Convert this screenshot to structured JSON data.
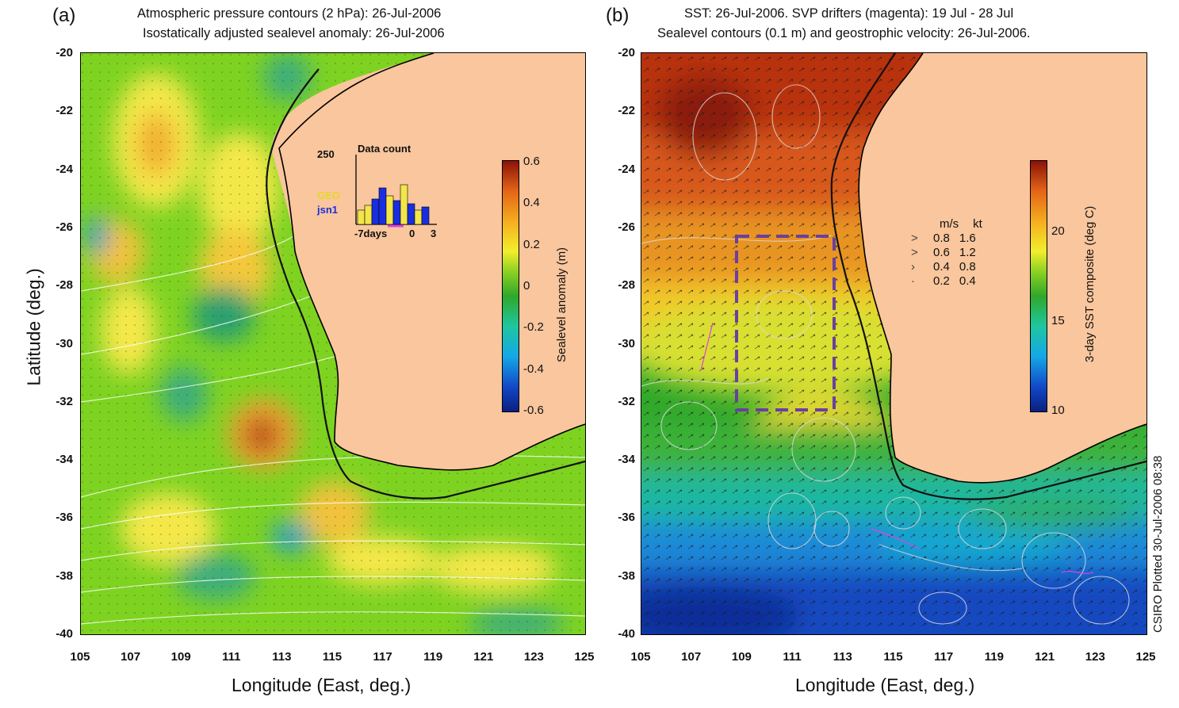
{
  "panel_a": {
    "letter": "(a)",
    "title_line1": "Atmospheric pressure contours (2 hPa): 26-Jul-2006",
    "title_line2": "Isostatically adjusted sealevel anomaly: 26-Jul-2006",
    "x_axis_label": "Longitude (East, deg.)",
    "y_axis_label": "Latitude (deg.)",
    "x_ticks": [
      "105",
      "107",
      "109",
      "111",
      "113",
      "115",
      "117",
      "119",
      "121",
      "123",
      "125"
    ],
    "y_ticks": [
      "-20",
      "-22",
      "-24",
      "-26",
      "-28",
      "-30",
      "-32",
      "-34",
      "-36",
      "-38",
      "-40"
    ],
    "colorbar": {
      "label": "Sealevel anomaly (m)",
      "ticks": [
        "0.6",
        "0.4",
        "0.2",
        "0",
        "-0.2",
        "-0.4",
        "-0.6"
      ]
    },
    "inset": {
      "title": "Data count",
      "max_label": "250",
      "legend_geo": "GEO",
      "legend_jsn1": "jsn1",
      "x_ticks": [
        "-7days",
        "0",
        "3"
      ],
      "geo_color": "#f2e64a",
      "jsn1_color": "#1a2ee0"
    }
  },
  "panel_b": {
    "letter": "(b)",
    "title_line1": "SST: 26-Jul-2006. SVP drifters (magenta): 19 Jul - 28 Jul",
    "title_line2": "Sealevel contours (0.1 m) and geostrophic velocity: 26-Jul-2006.",
    "x_axis_label": "Longitude (East, deg.)",
    "x_ticks": [
      "105",
      "107",
      "109",
      "111",
      "113",
      "115",
      "117",
      "119",
      "121",
      "123",
      "125"
    ],
    "y_ticks": [
      "-20",
      "-22",
      "-24",
      "-26",
      "-28",
      "-30",
      "-32",
      "-34",
      "-36",
      "-38",
      "-40"
    ],
    "colorbar": {
      "label": "3-day SST composite (deg C)",
      "ticks": [
        "20",
        "15",
        "10"
      ]
    },
    "velocity_legend": {
      "header_ms": "m/s",
      "header_kt": "kt",
      "rows": [
        {
          "ms": "0.8",
          "kt": "1.6"
        },
        {
          "ms": "0.6",
          "kt": "1.2"
        },
        {
          "ms": "0.4",
          "kt": "0.8"
        },
        {
          "ms": "0.2",
          "kt": "0.4"
        }
      ]
    },
    "credit": "CSIRO Plotted 30-Jul-2006 08:38",
    "box_color": "#6a3fa0",
    "drifter_color": "#e040e0"
  },
  "colors": {
    "land": "#f9c69d",
    "coastline": "#000000"
  }
}
